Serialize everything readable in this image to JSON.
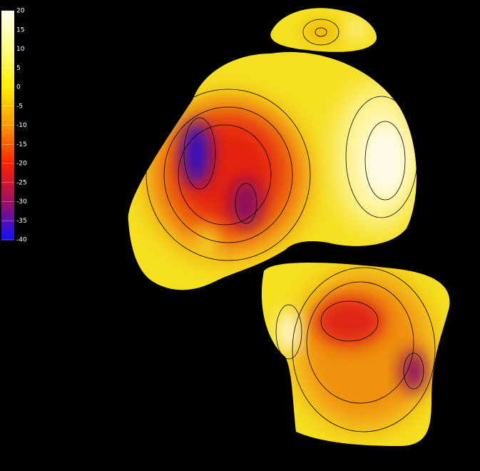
{
  "colorbar": {
    "ticks": [
      20,
      15,
      10,
      5,
      0,
      -5,
      -10,
      -15,
      -20,
      -25,
      -30,
      -35,
      -40
    ]
  }
}
